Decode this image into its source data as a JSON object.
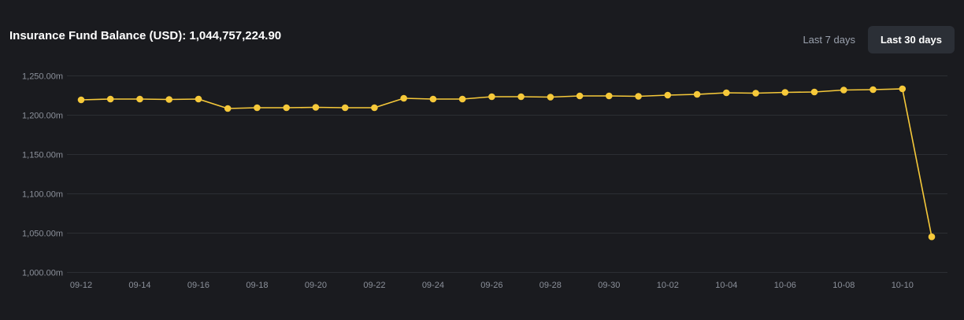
{
  "header": {
    "title": "Insurance Fund Balance (USD): 1,044,757,224.90"
  },
  "range_buttons": [
    {
      "label": "Last 7 days",
      "active": false
    },
    {
      "label": "Last 30 days",
      "active": true
    }
  ],
  "colors": {
    "background": "#1a1b1f",
    "line": "#f6c93a",
    "grid": "#2c2e33",
    "active_button_bg": "#2b2f36"
  },
  "chart_data": {
    "type": "line",
    "x": [
      "09-12",
      "09-13",
      "09-14",
      "09-15",
      "09-16",
      "09-17",
      "09-18",
      "09-19",
      "09-20",
      "09-21",
      "09-22",
      "09-23",
      "09-24",
      "09-25",
      "09-26",
      "09-27",
      "09-28",
      "09-29",
      "09-30",
      "10-01",
      "10-02",
      "10-03",
      "10-04",
      "10-05",
      "10-06",
      "10-07",
      "10-08",
      "10-09",
      "10-10",
      "10-11"
    ],
    "x_tick_labels": [
      "09-12",
      "09-14",
      "09-16",
      "09-18",
      "09-20",
      "09-22",
      "09-24",
      "09-26",
      "09-28",
      "09-30",
      "10-02",
      "10-04",
      "10-06",
      "10-08",
      "10-10"
    ],
    "series": [
      {
        "values": [
          1219.0,
          1220.0,
          1220.0,
          1219.5,
          1220.0,
          1208.0,
          1209.0,
          1209.0,
          1209.5,
          1209.0,
          1209.0,
          1221.0,
          1220.0,
          1220.0,
          1223.0,
          1223.0,
          1222.5,
          1224.0,
          1224.0,
          1223.5,
          1225.0,
          1226.0,
          1228.0,
          1227.5,
          1228.5,
          1229.0,
          1231.5,
          1232.0,
          1233.0,
          1044.76
        ]
      }
    ],
    "y_ticks": [
      1000,
      1050,
      1100,
      1150,
      1200,
      1250
    ],
    "y_tick_labels": [
      "1,000.00m",
      "1,050.00m",
      "1,100.00m",
      "1,150.00m",
      "1,200.00m",
      "1,250.00m"
    ],
    "ylim": [
      1000,
      1250
    ],
    "y_unit": "m",
    "grid": true,
    "legend": false
  }
}
